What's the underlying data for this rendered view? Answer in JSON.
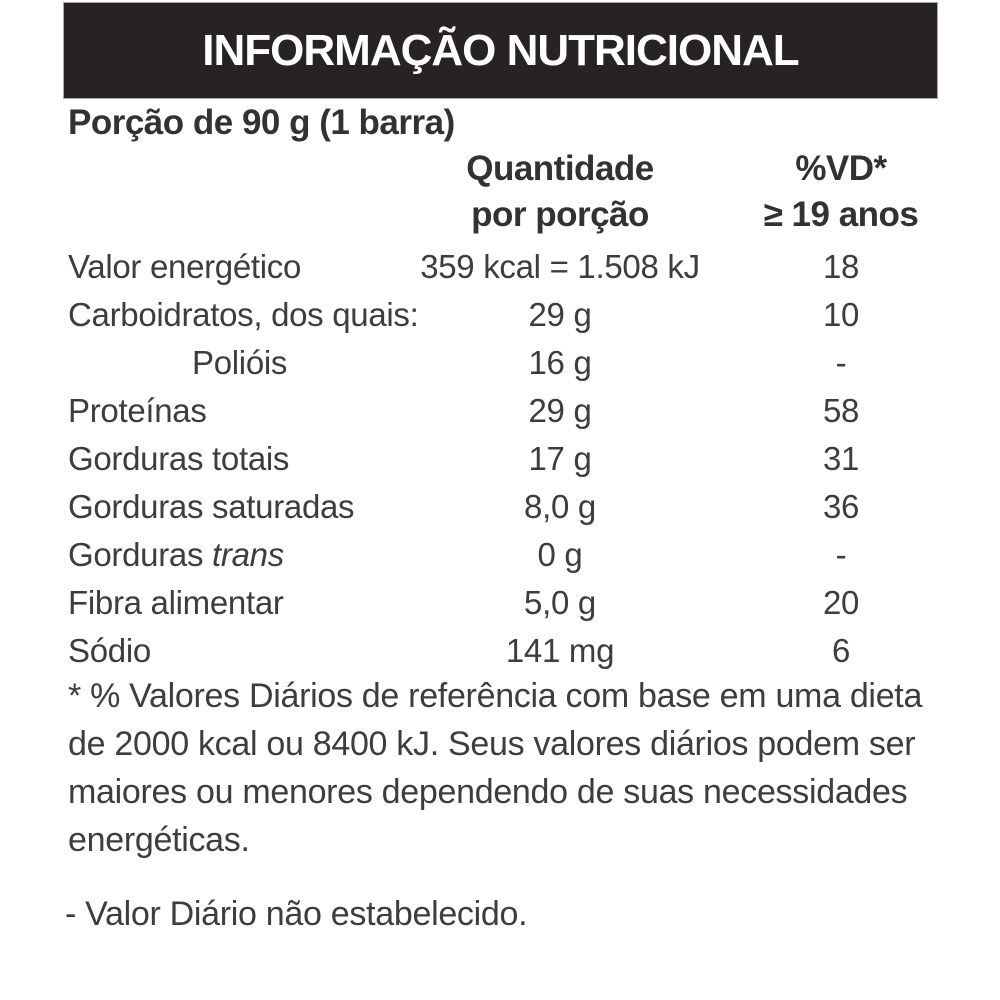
{
  "label": {
    "title": "INFORMAÇÃO NUTRICIONAL",
    "serving": "Porção de 90 g (1 barra)",
    "columns": {
      "amount": {
        "line1": "Quantidade",
        "line2": "por porção"
      },
      "vd": {
        "line1": "%VD*",
        "line2": "≥ 19 anos"
      }
    },
    "rows": [
      {
        "name": "Valor energético",
        "name_italic": "",
        "amount": "359 kcal = 1.508 kJ",
        "vd": "18",
        "indent": false
      },
      {
        "name": "Carboidratos, dos quais:",
        "name_italic": "",
        "amount": "29 g",
        "vd": "10",
        "indent": false
      },
      {
        "name": "Polióis",
        "name_italic": "",
        "amount": "16 g",
        "vd": "-",
        "indent": true
      },
      {
        "name": "Proteínas",
        "name_italic": "",
        "amount": "29 g",
        "vd": "58",
        "indent": false
      },
      {
        "name": "Gorduras totais",
        "name_italic": "",
        "amount": "17 g",
        "vd": "31",
        "indent": false
      },
      {
        "name": "Gorduras saturadas",
        "name_italic": "",
        "amount": "8,0 g",
        "vd": "36",
        "indent": false
      },
      {
        "name": "Gorduras",
        "name_italic": "trans",
        "amount": "0 g",
        "vd": "-",
        "indent": false
      },
      {
        "name": "Fibra alimentar",
        "name_italic": "",
        "amount": "5,0 g",
        "vd": "20",
        "indent": false
      },
      {
        "name": "Sódio",
        "name_italic": "",
        "amount": "141 mg",
        "vd": "6",
        "indent": false
      }
    ],
    "footnote": "* % Valores Diários de referência com base em uma dieta de 2000 kcal ou 8400 kJ. Seus valores diários podem ser maiores ou menores dependendo de suas necessidades energéticas.",
    "nd_note": "- Valor Diário não estabelecido.",
    "colors": {
      "header_bg": "#272324",
      "header_text": "#ffffff",
      "body_text": "#3d3d3d"
    }
  }
}
